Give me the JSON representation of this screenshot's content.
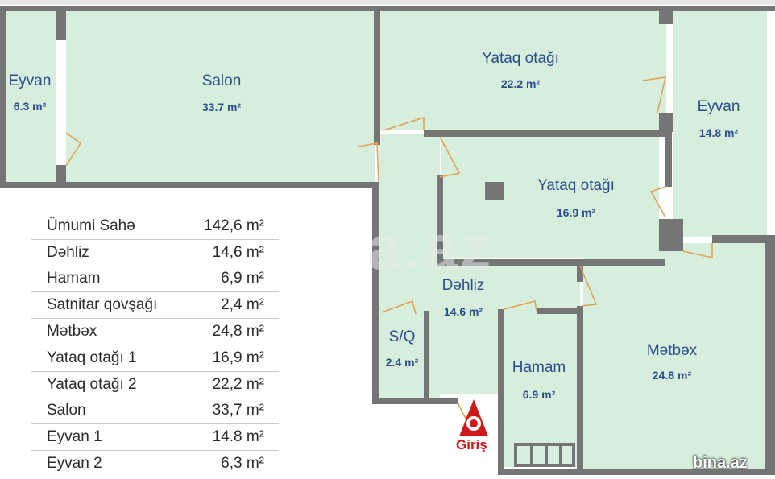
{
  "rooms": {
    "eyvan_left": {
      "name": "Eyvan",
      "area": "6.3 m²"
    },
    "salon": {
      "name": "Salon",
      "area": "33.7 m²"
    },
    "yataq_1": {
      "name": "Yataq otağı",
      "area": "22.2 m²"
    },
    "eyvan_right": {
      "name": "Eyvan",
      "area": "14.8 m²"
    },
    "yataq_2": {
      "name": "Yataq otağı",
      "area": "16.9 m²"
    },
    "dehliz": {
      "name": "Dəhliz",
      "area": "14.6 m²"
    },
    "sq": {
      "name": "S/Q",
      "area": "2.4 m²"
    },
    "hamam": {
      "name": "Hamam",
      "area": "6.9 m²"
    },
    "metbex": {
      "name": "Mətbəx",
      "area": "24.8 m²"
    }
  },
  "area_table": [
    {
      "label": "Ümumi Sahə",
      "value": "142,6 m²"
    },
    {
      "label": "Dəhliz",
      "value": "14,6 m²"
    },
    {
      "label": "Hamam",
      "value": "6,9 m²"
    },
    {
      "label": "Satnitar qovşağı",
      "value": "2,4 m²"
    },
    {
      "label": "Mətbəx",
      "value": "24,8 m²"
    },
    {
      "label": "Yataq otağı 1",
      "value": "16,9 m²"
    },
    {
      "label": "Yataq otağı 2",
      "value": "22,2 m²"
    },
    {
      "label": "Salon",
      "value": "33,7 m²"
    },
    {
      "label": "Eyvan 1",
      "value": "14.8 m²"
    },
    {
      "label": "Eyvan 2",
      "value": "6,3 m²"
    }
  ],
  "entrance_label": "Giriş",
  "watermark": "a.az",
  "brand": "bina.az",
  "colors": {
    "floor": "#d6eedb",
    "wall": "#757575",
    "door": "#e0a458",
    "text": "#2a4f8f",
    "entrance": "#cc1a1a"
  }
}
